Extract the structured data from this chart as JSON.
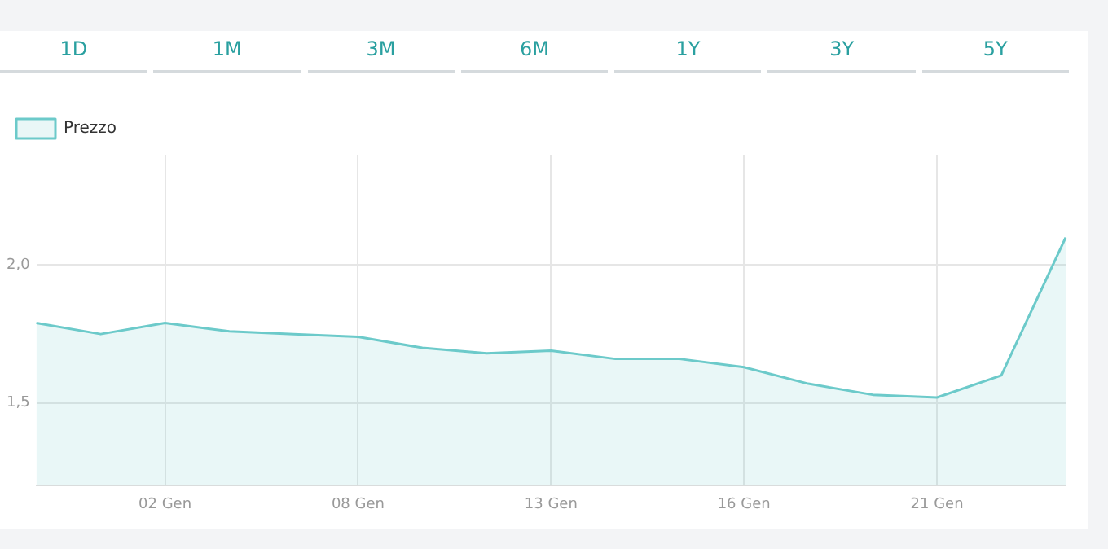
{
  "chart_data": {
    "type": "area",
    "legend": "top left",
    "grid": true,
    "marker": "none",
    "annotations": [
      "1D",
      "1M",
      "3M",
      "6M",
      "1Y",
      "3Y",
      "5Y"
    ],
    "categories": [
      null,
      null,
      "02 Gen",
      null,
      null,
      "08 Gen",
      null,
      null,
      "13 Gen",
      null,
      null,
      "16 Gen",
      null,
      null,
      "21 Gen",
      null,
      null
    ],
    "series": [
      {
        "name": "Prezzo",
        "color": "#6ccaca",
        "values": [
          1.79,
          1.75,
          1.79,
          1.76,
          1.75,
          1.74,
          1.7,
          1.68,
          1.69,
          1.66,
          1.66,
          1.63,
          1.57,
          1.53,
          1.52,
          1.6,
          2.1
        ]
      }
    ],
    "ylim": [
      1.2,
      2.4
    ],
    "yticks": [
      {
        "value": 1.5,
        "label": "1,5"
      },
      {
        "value": 2.0,
        "label": "2,0"
      }
    ]
  }
}
